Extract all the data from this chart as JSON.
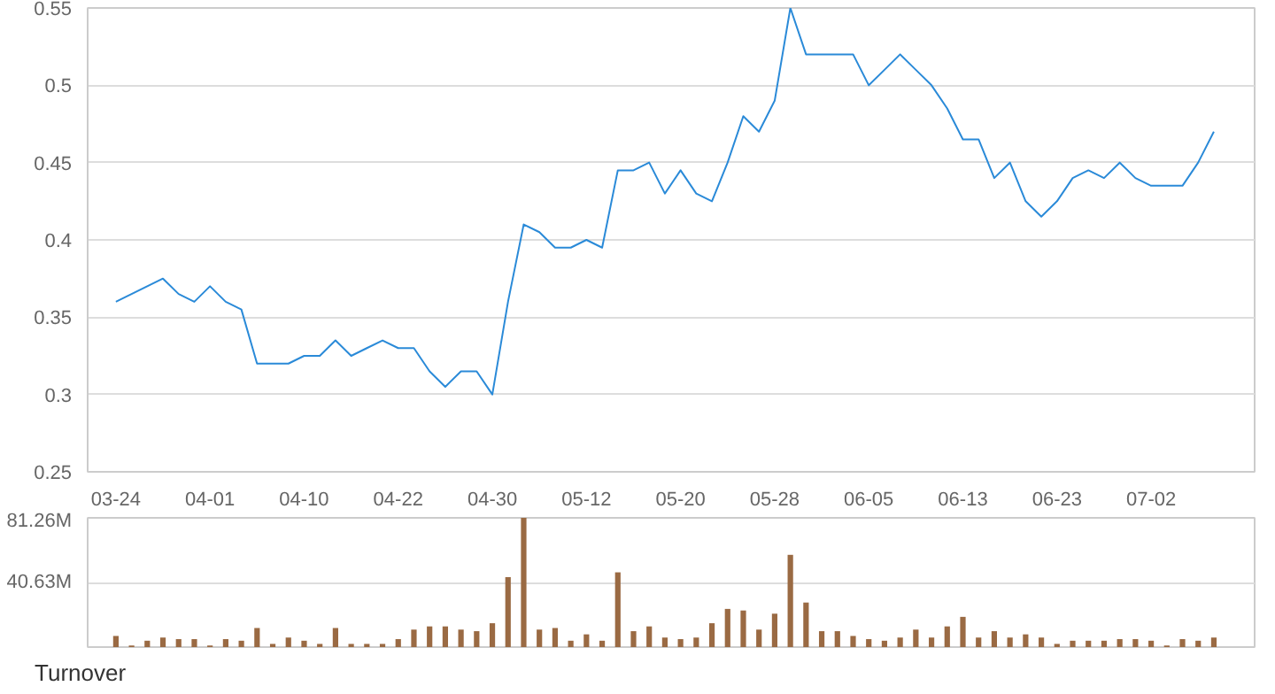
{
  "chart_data": [
    {
      "type": "line",
      "categories": [
        "03-24",
        null,
        null,
        null,
        null,
        null,
        "04-01",
        null,
        null,
        null,
        null,
        null,
        "04-10",
        null,
        null,
        null,
        null,
        null,
        "04-22",
        null,
        null,
        null,
        null,
        null,
        "04-30",
        null,
        null,
        null,
        null,
        null,
        "05-12",
        null,
        null,
        null,
        null,
        null,
        "05-20",
        null,
        null,
        null,
        null,
        null,
        "05-28",
        null,
        null,
        null,
        null,
        null,
        "06-05",
        null,
        null,
        null,
        null,
        null,
        "06-13",
        null,
        null,
        null,
        null,
        null,
        "06-23",
        null,
        null,
        null,
        null,
        null,
        "07-02",
        null,
        null,
        null,
        null
      ],
      "series": [
        {
          "color": "#2a8ad8",
          "values": [
            0.36,
            0.365,
            0.37,
            0.375,
            0.365,
            0.36,
            0.37,
            0.36,
            0.355,
            0.32,
            0.32,
            0.32,
            0.325,
            0.325,
            0.335,
            0.325,
            0.33,
            0.335,
            0.33,
            0.33,
            0.315,
            0.305,
            0.315,
            0.315,
            0.3,
            0.36,
            0.41,
            0.405,
            0.395,
            0.395,
            0.4,
            0.395,
            0.445,
            0.445,
            0.45,
            0.43,
            0.445,
            0.43,
            0.425,
            0.45,
            0.48,
            0.47,
            0.49,
            0.55,
            0.52,
            0.52,
            0.52,
            0.52,
            0.5,
            0.51,
            0.52,
            0.51,
            0.5,
            0.485,
            0.465,
            0.465,
            0.44,
            0.45,
            0.425,
            0.415,
            0.425,
            0.44,
            0.445,
            0.44,
            0.45,
            0.44,
            0.435,
            0.435,
            0.435,
            0.45,
            0.47
          ]
        }
      ],
      "ylim": [
        0.25,
        0.55
      ],
      "yticks": [
        0.25,
        0.3,
        0.35,
        0.4,
        0.45,
        0.5,
        0.55
      ],
      "grid": "y"
    },
    {
      "type": "bar",
      "title": "Turnover",
      "categories": [
        null,
        null,
        null,
        null,
        null,
        null,
        null,
        null,
        null,
        null,
        null,
        null,
        null,
        null,
        null,
        null,
        null,
        null,
        null,
        null,
        null,
        null,
        null,
        null,
        null,
        null,
        null,
        null,
        null,
        null,
        null,
        null,
        null,
        null,
        null,
        null,
        null,
        null,
        null,
        null,
        null,
        null,
        null,
        null,
        null,
        null,
        null,
        null,
        null,
        null,
        null,
        null,
        null,
        null,
        null,
        null,
        null,
        null,
        null,
        null,
        null,
        null,
        null,
        null,
        null,
        null,
        null,
        null,
        null,
        null,
        null
      ],
      "series": [
        {
          "color": "#9a6a43",
          "values": [
            7,
            1,
            4,
            6,
            5,
            5,
            1,
            5,
            4,
            12,
            2,
            6,
            4,
            2,
            12,
            2,
            2,
            2,
            5,
            11,
            13,
            13,
            11,
            10,
            15,
            44,
            81.26,
            11,
            12,
            4,
            8,
            4,
            47,
            10,
            13,
            6,
            5,
            6,
            15,
            24,
            23,
            11,
            21,
            58,
            28,
            10,
            10,
            7,
            5,
            4,
            6,
            11,
            6,
            13,
            19,
            6,
            10,
            6,
            8,
            6,
            2,
            4,
            4,
            4,
            5,
            5,
            4,
            1,
            5,
            4,
            6
          ]
        }
      ],
      "ylim": [
        0,
        81.26
      ],
      "yticks": [
        {
          "value": 40.63,
          "label": "40.63M"
        },
        {
          "value": 81.26,
          "label": "81.26M"
        }
      ],
      "grid": "y",
      "tick_labels": "y"
    }
  ]
}
